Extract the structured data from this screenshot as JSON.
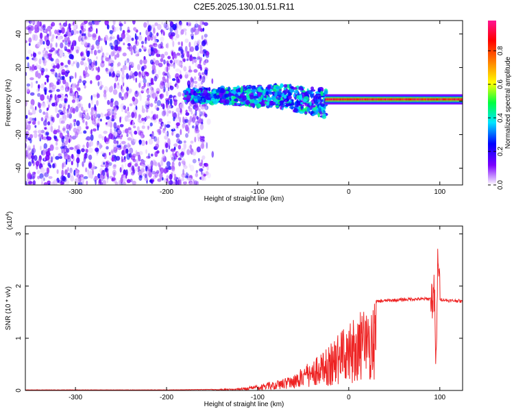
{
  "figure": {
    "title": "C2E5.2025.130.01.51.R11"
  },
  "chart_data": [
    {
      "type": "heatmap",
      "xlabel": "Height of straight line (km)",
      "ylabel": "Frequency (Hz)",
      "xlim": [
        -355,
        125
      ],
      "ylim": [
        -50,
        48
      ],
      "xticks": [
        -300,
        -200,
        -100,
        0,
        100
      ],
      "yticks": [
        -40,
        -20,
        0,
        20,
        40
      ],
      "colorbar": {
        "label": "Normalized spectral amplitude",
        "range": [
          0.0,
          0.98
        ],
        "ticks": [
          "0.0",
          "0.2",
          "0.4",
          "0.6",
          "0.8"
        ],
        "colors": [
          "#ffffff",
          "#7b00ff",
          "#0000ff",
          "#00e5ff",
          "#00ff40",
          "#ffff00",
          "#ff7f00",
          "#ff0000",
          "#ff1493"
        ]
      },
      "regions": [
        {
          "x_range": [
            -355,
            -155
          ],
          "freq_range": [
            -50,
            48
          ],
          "amplitude": 0.15,
          "note": "broadband noise"
        },
        {
          "x_range": [
            -180,
            -25
          ],
          "freq_center": 3,
          "freq_width": 12,
          "amplitude": 0.4
        },
        {
          "x_range": [
            -25,
            125
          ],
          "freq_center": 1,
          "freq_width": 6,
          "amplitude": 0.9
        }
      ]
    },
    {
      "type": "line",
      "xlabel": "Height of straight line (km)",
      "ylabel": "SNR (10 * v/v)",
      "y_multiplier": "(x10",
      "y_multiplier_exp": "4",
      "y_multiplier_close": ")",
      "xlim": [
        -355,
        125
      ],
      "ylim": [
        0,
        3.15
      ],
      "xticks": [
        -300,
        -200,
        -100,
        0,
        100
      ],
      "yticks": [
        0,
        1,
        2,
        3
      ],
      "color": "#ee2222",
      "series": [
        {
          "x": [
            -355,
            -300,
            -250,
            -200,
            -150,
            -120,
            -100,
            -90,
            -80,
            -70,
            -60,
            -50,
            -40,
            -30,
            -20,
            -10,
            0,
            10,
            20,
            30,
            40,
            50,
            60,
            70,
            80,
            90,
            94,
            96,
            98,
            100,
            110,
            120,
            125
          ],
          "y": [
            0.01,
            0.01,
            0.01,
            0.01,
            0.02,
            0.04,
            0.1,
            0.15,
            0.2,
            0.25,
            0.32,
            0.45,
            0.6,
            0.7,
            0.9,
            1.1,
            1.35,
            1.5,
            1.6,
            1.7,
            1.72,
            1.73,
            1.74,
            1.75,
            1.75,
            1.76,
            1.8,
            0.3,
            2.8,
            1.75,
            1.72,
            1.72,
            1.7
          ]
        }
      ]
    }
  ]
}
